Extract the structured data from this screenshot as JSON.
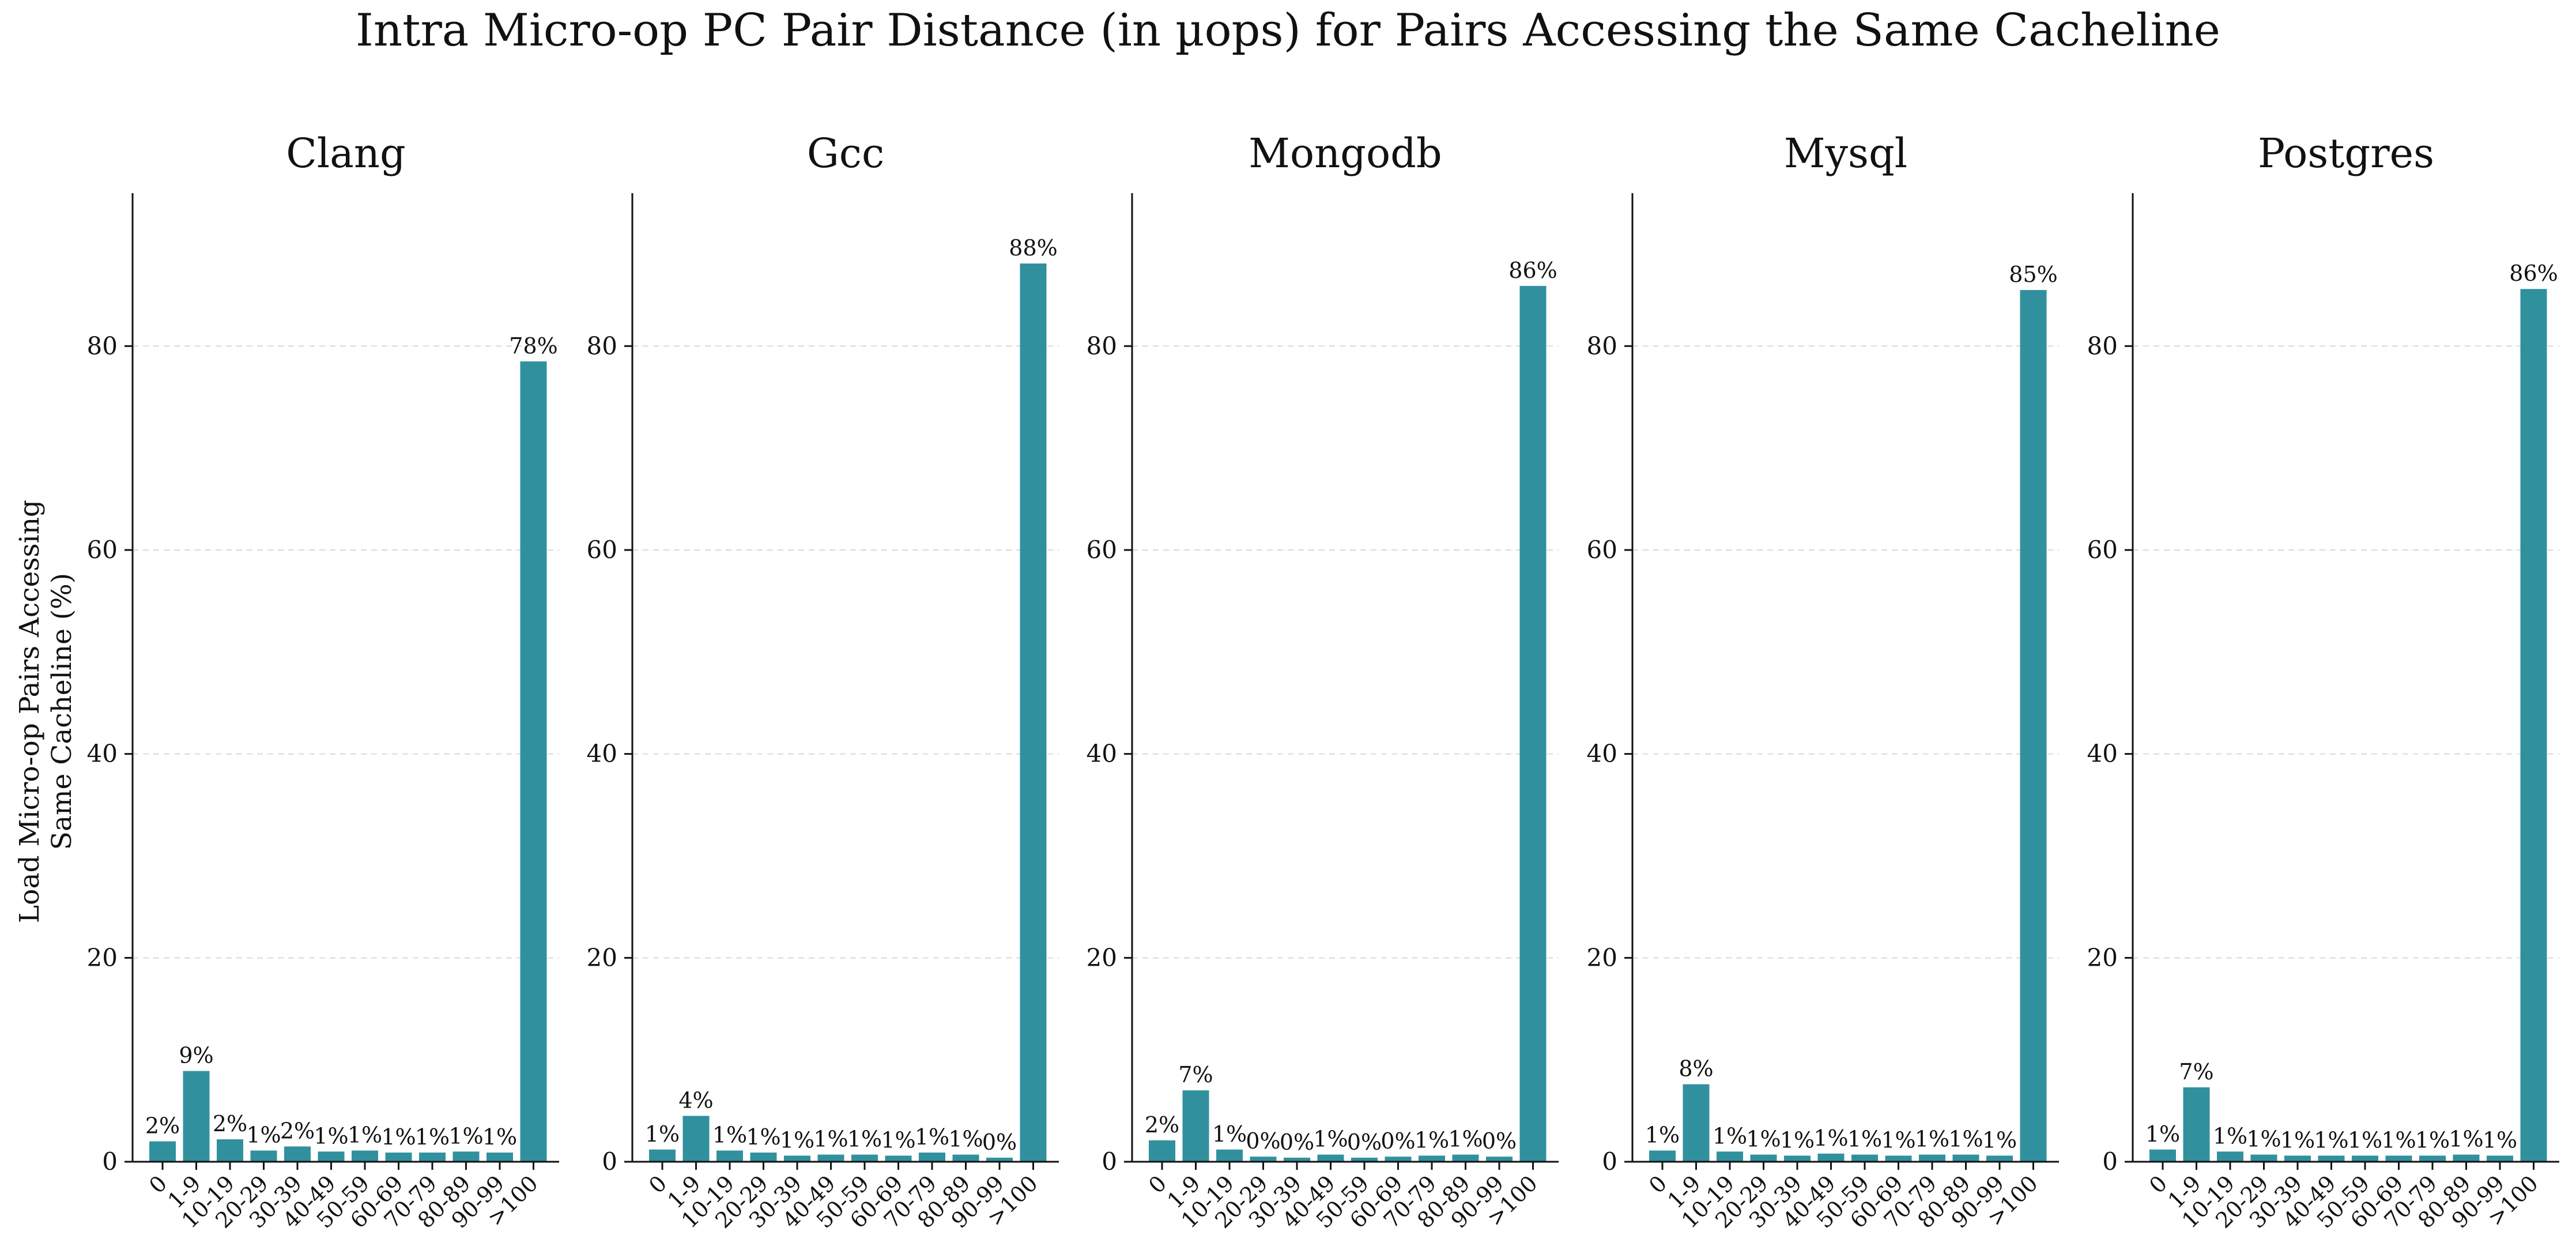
{
  "title": "Intra Micro-op PC Pair Distance (in µops) for Pairs Accessing the Same Cacheline",
  "ylabel": "Load Micro-op Pairs Accessing\nSame Cacheline (%)",
  "colors": {
    "bar": "#31909e",
    "grid": "#d9d9d9",
    "axis": "#111111"
  },
  "chart_data": [
    {
      "type": "bar",
      "title": "Clang",
      "categories": [
        "0",
        "1-9",
        "10-19",
        "20-29",
        "30-39",
        "40-49",
        "50-59",
        "60-69",
        "70-79",
        "80-89",
        "90-99",
        ">100"
      ],
      "values": [
        2.0,
        8.9,
        2.2,
        1.1,
        1.5,
        1.0,
        1.1,
        0.9,
        0.9,
        1.0,
        0.9,
        78.5
      ],
      "labels": [
        "2%",
        "9%",
        "2%",
        "1%",
        "2%",
        "1%",
        "1%",
        "1%",
        "1%",
        "1%",
        "1%",
        "78%"
      ],
      "ylim": [
        0,
        95
      ],
      "yticks": [
        0,
        20,
        40,
        60,
        80
      ],
      "grid": true
    },
    {
      "type": "bar",
      "title": "Gcc",
      "categories": [
        "0",
        "1-9",
        "10-19",
        "20-29",
        "30-39",
        "40-49",
        "50-59",
        "60-69",
        "70-79",
        "80-89",
        "90-99",
        ">100"
      ],
      "values": [
        1.2,
        4.5,
        1.1,
        0.9,
        0.6,
        0.7,
        0.7,
        0.6,
        0.9,
        0.7,
        0.4,
        88.1
      ],
      "labels": [
        "1%",
        "4%",
        "1%",
        "1%",
        "1%",
        "1%",
        "1%",
        "1%",
        "1%",
        "1%",
        "0%",
        "88%"
      ],
      "ylim": [
        0,
        95
      ],
      "yticks": [
        0,
        20,
        40,
        60,
        80
      ],
      "grid": true
    },
    {
      "type": "bar",
      "title": "Mongodb",
      "categories": [
        "0",
        "1-9",
        "10-19",
        "20-29",
        "30-39",
        "40-49",
        "50-59",
        "60-69",
        "70-79",
        "80-89",
        "90-99",
        ">100"
      ],
      "values": [
        2.1,
        7.0,
        1.2,
        0.5,
        0.4,
        0.7,
        0.4,
        0.5,
        0.6,
        0.7,
        0.5,
        85.9
      ],
      "labels": [
        "2%",
        "7%",
        "1%",
        "0%",
        "0%",
        "1%",
        "0%",
        "0%",
        "1%",
        "1%",
        "0%",
        "86%"
      ],
      "ylim": [
        0,
        95
      ],
      "yticks": [
        0,
        20,
        40,
        60,
        80
      ],
      "grid": true
    },
    {
      "type": "bar",
      "title": "Mysql",
      "categories": [
        "0",
        "1-9",
        "10-19",
        "20-29",
        "30-39",
        "40-49",
        "50-59",
        "60-69",
        "70-79",
        "80-89",
        "90-99",
        ">100"
      ],
      "values": [
        1.1,
        7.6,
        1.0,
        0.7,
        0.6,
        0.8,
        0.7,
        0.6,
        0.7,
        0.7,
        0.6,
        85.5
      ],
      "labels": [
        "1%",
        "8%",
        "1%",
        "1%",
        "1%",
        "1%",
        "1%",
        "1%",
        "1%",
        "1%",
        "1%",
        "85%"
      ],
      "ylim": [
        0,
        95
      ],
      "yticks": [
        0,
        20,
        40,
        60,
        80
      ],
      "grid": true
    },
    {
      "type": "bar",
      "title": "Postgres",
      "categories": [
        "0",
        "1-9",
        "10-19",
        "20-29",
        "30-39",
        "40-49",
        "50-59",
        "60-69",
        "70-79",
        "80-89",
        "90-99",
        ">100"
      ],
      "values": [
        1.2,
        7.3,
        1.0,
        0.7,
        0.6,
        0.6,
        0.6,
        0.6,
        0.6,
        0.7,
        0.6,
        85.6
      ],
      "labels": [
        "1%",
        "7%",
        "1%",
        "1%",
        "1%",
        "1%",
        "1%",
        "1%",
        "1%",
        "1%",
        "1%",
        "86%"
      ],
      "ylim": [
        0,
        95
      ],
      "yticks": [
        0,
        20,
        40,
        60,
        80
      ],
      "grid": true
    }
  ]
}
